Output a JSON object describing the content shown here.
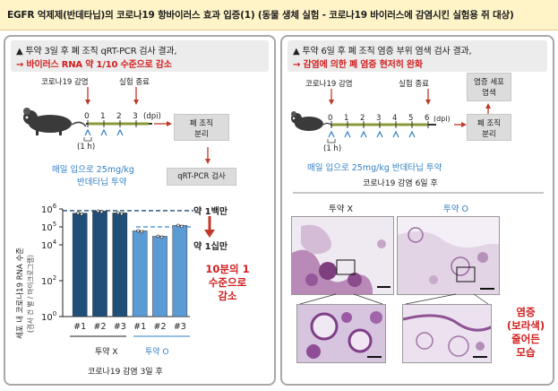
{
  "header": {
    "title": "EGFR 억제제(반데타닙)의 코로나19 항바이러스 효과 입증(1)  (동물 생체 실험 - 코로나19 바이러스에 감염시킨 실험용 쥐 대상)"
  },
  "left": {
    "finding_line1": "▲ 투약 3일 후 폐 조직 qRT-PCR 검사 결과,",
    "finding_line2": "→ 바이러스 RNA 약 1/10 수준으로 감소",
    "timeline": {
      "infection_label": "코로나19 감염",
      "end_label": "실험 종료",
      "days": [
        "0",
        "1",
        "2",
        "3"
      ],
      "dpi_label": "(dpi)",
      "hour_label": "(1 h)",
      "dosing_text_1": "매일 입으로 25mg/kg",
      "dosing_text_2": "반데타닙 투약",
      "box_lung": [
        "폐 조직",
        "분리"
      ],
      "box_pcr": "qRT-PCR 검사"
    },
    "chart_annotations": {
      "million": "약 1백만",
      "hundred_k": "약 1십만",
      "reduction": [
        "10분의 1",
        "수준으로",
        "감소"
      ],
      "ylabel_1": "세포 내 코로나19 RNA 수준",
      "ylabel_2": "(검사 건 별 / 마이크로그램)",
      "group_x": "투약 X",
      "group_o": "투약 O",
      "caption": "코로나19 감염 3일 후"
    }
  },
  "right": {
    "finding_line1": "▲ 투약 6일 후 폐 조직 염증 부위 염색 검사 결과,",
    "finding_line2": "→ 감염에 의한 폐 염증 현저히 완화",
    "timeline": {
      "infection_label": "코로나19 감염",
      "end_label": "실험 종료",
      "days": [
        "0",
        "1",
        "2",
        "3",
        "4",
        "5",
        "6"
      ],
      "dpi_label": "(dpi)",
      "hour_label": "(1 h)",
      "dosing_text": "매일 입으로 25mg/kg 반데타닙 투약",
      "box_stain": [
        "염증 세포",
        "염색"
      ],
      "box_lung": [
        "폐 조직",
        "분리"
      ],
      "caption": "코로나19 감염 6일 후"
    },
    "groups": {
      "untreated": "투약 X",
      "treated": "투약 O"
    },
    "annotation": [
      "염증",
      "(보라색)",
      "줄어든",
      "모습"
    ]
  },
  "chart_data": {
    "type": "bar",
    "title": "",
    "ylabel": "세포 내 코로나19 RNA 수준 (검사 건 별 / 마이크로그램)",
    "xlabel": "코로나19 감염 3일 후",
    "yscale": "log",
    "ylim": [
      1,
      1000000
    ],
    "yticks": [
      "10^0",
      "10^2",
      "10^4",
      "10^5",
      "10^6"
    ],
    "categories": [
      "#1",
      "#2",
      "#3",
      "#1",
      "#2",
      "#3"
    ],
    "groups": [
      "투약 X",
      "투약 X",
      "투약 X",
      "투약 O",
      "투약 O",
      "투약 O"
    ],
    "values": [
      580000,
      760000,
      600000,
      60000,
      30000,
      120000
    ],
    "colors": [
      "#1f4e79",
      "#1f4e79",
      "#1f4e79",
      "#5b9bd5",
      "#5b9bd5",
      "#5b9bd5"
    ],
    "reference_lines": [
      {
        "label": "약 1백만",
        "value": 800000,
        "color": "#1f4e79"
      },
      {
        "label": "약 1십만",
        "value": 100000,
        "color": "#5b9bd5"
      }
    ]
  }
}
